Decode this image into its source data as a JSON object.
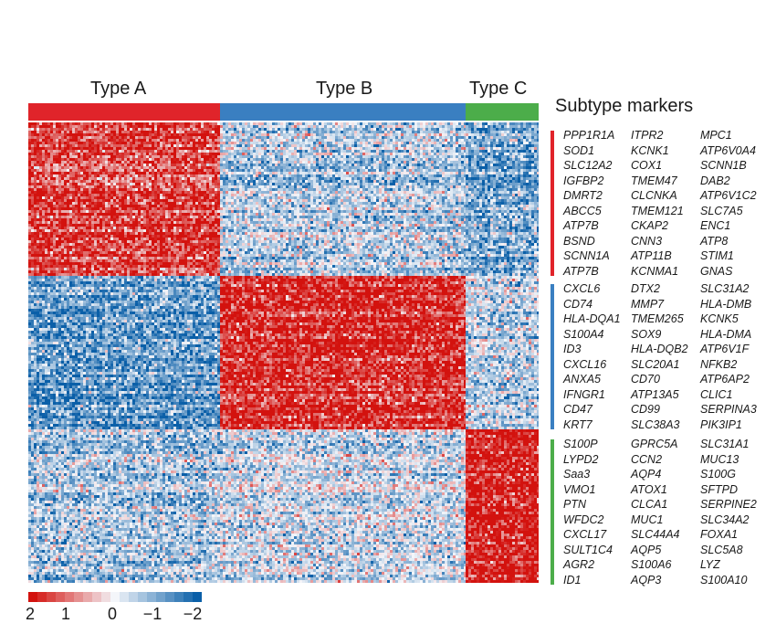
{
  "chart_data": {
    "type": "heatmap",
    "title": "",
    "xlabel": "",
    "ylabel": "",
    "columns": [
      {
        "label": "Type A",
        "color": "#e0242a"
      },
      {
        "label": "Type B",
        "color": "#3a7fc1"
      },
      {
        "label": "Type C",
        "color": "#4cad4a"
      }
    ],
    "row_groups": [
      {
        "up_in": "Type A",
        "color": "#e0242a"
      },
      {
        "up_in": "Type B",
        "color": "#3a7fc1"
      },
      {
        "up_in": "Type C",
        "color": "#4cad4a"
      }
    ],
    "values_matrix": [
      [
        1.6,
        -0.5,
        -1.0
      ],
      [
        -1.2,
        1.8,
        -0.5
      ],
      [
        -0.6,
        -0.3,
        2.0
      ]
    ],
    "markers_title": "Subtype markers",
    "markers": [
      [
        "PPP1R1A",
        "ITPR2",
        "MPC1",
        "SOD1",
        "KCNK1",
        "ATP6V0A4",
        "SLC12A2",
        "COX1",
        "SCNN1B",
        "IGFBP2",
        "TMEM47",
        "DAB2",
        "DMRT2",
        "CLCNKA",
        "ATP6V1C2",
        "ABCC5",
        "TMEM121",
        "SLC7A5",
        "ATP7B",
        "CKAP2",
        "ENC1",
        "BSND",
        "CNN3",
        "ATP8",
        "SCNN1A",
        "ATP11B",
        "STIM1",
        "ATP7B",
        "KCNMA1",
        "GNAS"
      ],
      [
        "CXCL6",
        "DTX2",
        "SLC31A2",
        "CD74",
        "MMP7",
        "HLA-DMB",
        "HLA-DQA1",
        "TMEM265",
        "KCNK5",
        "S100A4",
        "SOX9",
        "HLA-DMA",
        "ID3",
        "HLA-DQB2",
        "ATP6V1F",
        "CXCL16",
        "SLC20A1",
        "NFKB2",
        "ANXA5",
        "CD70",
        "ATP6AP2",
        "IFNGR1",
        "ATP13A5",
        "CLIC1",
        "CD47",
        "CD99",
        "SERPINA3",
        "KRT7",
        "SLC38A3",
        "PIK3IP1"
      ],
      [
        "S100P",
        "GPRC5A",
        "SLC31A1",
        "LYPD2",
        "CCN2",
        "MUC13",
        "Saa3",
        "AQP4",
        "S100G",
        "VMO1",
        "ATOX1",
        "SFTPD",
        "PTN",
        "CLCA1",
        "SERPINE2",
        "WFDC2",
        "MUC1",
        "SLC34A2",
        "CXCL17",
        "SLC44A4",
        "FOXA1",
        "SULT1C4",
        "AQP5",
        "SLC5A8",
        "AGR2",
        "S100A6",
        "LYZ",
        "ID1",
        "AQP3",
        "S100A10"
      ]
    ],
    "colorscale": {
      "min": -2,
      "max": 2,
      "colors": [
        "#0a5fa8",
        "#f4f6fa",
        "#d3120e"
      ],
      "tick_labels": [
        "2",
        "1",
        "0",
        "−1",
        "−2"
      ]
    }
  }
}
